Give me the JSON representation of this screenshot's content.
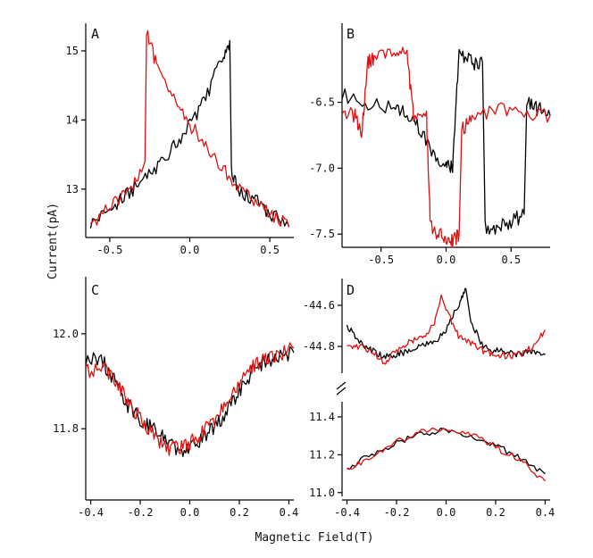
{
  "figure": {
    "xlabel": "Magnetic Field(T)",
    "ylabel": "Current(pA)"
  },
  "colors": {
    "up_sweep": "#000000",
    "down_sweep": "#e01010"
  },
  "chart_data": [
    {
      "panel": "A",
      "type": "line",
      "xlim": [
        -0.65,
        0.65
      ],
      "ylim": [
        12.3,
        15.4
      ],
      "xticks": [
        -0.5,
        0.0,
        0.5
      ],
      "xticklabels": [
        "-0.5",
        "0.0",
        "0.5"
      ],
      "yticks": [
        13,
        14,
        15
      ],
      "yticklabels": [
        "13",
        "14",
        "15"
      ],
      "series": [
        {
          "name": "black",
          "color": "#000000",
          "x": [
            -0.62,
            -0.5,
            -0.4,
            -0.3,
            -0.2,
            -0.1,
            0.0,
            0.1,
            0.2,
            0.25,
            0.26,
            0.3,
            0.4,
            0.5,
            0.62
          ],
          "y": [
            12.5,
            12.7,
            12.9,
            13.1,
            13.35,
            13.6,
            13.95,
            14.3,
            14.9,
            15.15,
            13.3,
            12.95,
            12.85,
            12.65,
            12.45
          ]
        },
        {
          "name": "red",
          "color": "#e01010",
          "x": [
            -0.62,
            -0.5,
            -0.4,
            -0.3,
            -0.28,
            -0.27,
            -0.2,
            -0.1,
            0.0,
            0.1,
            0.2,
            0.3,
            0.4,
            0.5,
            0.62
          ],
          "y": [
            12.5,
            12.75,
            12.95,
            13.25,
            13.4,
            15.3,
            14.7,
            14.3,
            13.95,
            13.6,
            13.3,
            13.05,
            12.85,
            12.65,
            12.45
          ]
        }
      ]
    },
    {
      "panel": "B",
      "type": "line",
      "xlim": [
        -0.8,
        0.8
      ],
      "ylim": [
        -7.6,
        -5.9
      ],
      "xticks": [
        -0.5,
        0.0,
        0.5
      ],
      "xticklabels": [
        "-0.5",
        "0.0",
        "0.5"
      ],
      "yticks": [
        -6.5,
        -7.0,
        -7.5
      ],
      "yticklabels": [
        "-6.5",
        "-7.0",
        "-7.5"
      ],
      "series": [
        {
          "name": "black",
          "color": "#000000",
          "x": [
            -0.8,
            -0.6,
            -0.4,
            -0.3,
            -0.2,
            -0.1,
            0.0,
            0.05,
            0.1,
            0.12,
            0.2,
            0.28,
            0.3,
            0.4,
            0.5,
            0.6,
            0.62,
            0.7,
            0.8
          ],
          "y": [
            -6.45,
            -6.5,
            -6.55,
            -6.6,
            -6.7,
            -6.9,
            -6.95,
            -7.0,
            -6.1,
            -6.15,
            -6.2,
            -6.2,
            -7.45,
            -7.45,
            -7.4,
            -7.35,
            -6.5,
            -6.55,
            -6.6
          ]
        },
        {
          "name": "red",
          "color": "#e01010",
          "x": [
            -0.8,
            -0.7,
            -0.65,
            -0.6,
            -0.55,
            -0.4,
            -0.3,
            -0.25,
            -0.15,
            -0.12,
            -0.05,
            0.0,
            0.05,
            0.1,
            0.12,
            0.2,
            0.4,
            0.6,
            0.8
          ],
          "y": [
            -6.55,
            -6.6,
            -6.75,
            -6.2,
            -6.15,
            -6.1,
            -6.15,
            -6.6,
            -6.6,
            -7.45,
            -7.5,
            -7.55,
            -7.55,
            -7.5,
            -6.7,
            -6.65,
            -6.55,
            -6.6,
            -6.6
          ]
        }
      ]
    },
    {
      "panel": "C",
      "type": "line",
      "xlim": [
        -0.42,
        0.42
      ],
      "ylim": [
        11.65,
        12.12
      ],
      "xticks": [
        -0.4,
        -0.2,
        0.0,
        0.2,
        0.4
      ],
      "xticklabels": [
        "-0.4",
        "-0.2",
        "0.0",
        "0.2",
        "0.4"
      ],
      "yticks": [
        11.8,
        12.0
      ],
      "yticklabels": [
        "11.8",
        "12.0"
      ],
      "series": [
        {
          "name": "black",
          "color": "#000000",
          "x": [
            -0.42,
            -0.35,
            -0.3,
            -0.25,
            -0.2,
            -0.15,
            -0.1,
            -0.05,
            0.0,
            0.05,
            0.1,
            0.15,
            0.2,
            0.25,
            0.3,
            0.35,
            0.42
          ],
          "y": [
            11.95,
            11.94,
            11.9,
            11.85,
            11.82,
            11.8,
            11.78,
            11.75,
            11.76,
            11.78,
            11.8,
            11.84,
            11.88,
            11.92,
            11.94,
            11.95,
            11.96
          ]
        },
        {
          "name": "red",
          "color": "#e01010",
          "x": [
            -0.42,
            -0.35,
            -0.3,
            -0.25,
            -0.2,
            -0.15,
            -0.1,
            -0.05,
            0.0,
            0.05,
            0.1,
            0.15,
            0.2,
            0.25,
            0.3,
            0.35,
            0.42
          ],
          "y": [
            11.92,
            11.93,
            11.9,
            11.86,
            11.82,
            11.79,
            11.76,
            11.76,
            11.77,
            11.79,
            11.82,
            11.86,
            11.9,
            11.93,
            11.95,
            11.95,
            11.97
          ]
        }
      ]
    },
    {
      "panel": "D",
      "type": "line",
      "broken_axis": true,
      "xlim": [
        -0.42,
        0.42
      ],
      "xticks": [
        -0.4,
        -0.2,
        0.0,
        0.2,
        0.4
      ],
      "xticklabels": [
        "-0.4",
        "-0.2",
        "0.0",
        "0.2",
        "0.4"
      ],
      "upper": {
        "ylim": [
          -44.93,
          -44.47
        ],
        "yticks": [
          -44.6,
          -44.8
        ],
        "yticklabels": [
          "-44.6",
          "-44.8"
        ],
        "series": [
          {
            "name": "black",
            "color": "#000000",
            "x": [
              -0.4,
              -0.35,
              -0.3,
              -0.25,
              -0.2,
              -0.15,
              -0.1,
              -0.05,
              0.0,
              0.05,
              0.08,
              0.1,
              0.15,
              0.2,
              0.25,
              0.3,
              0.35,
              0.4
            ],
            "y": [
              -44.7,
              -44.78,
              -44.82,
              -44.85,
              -44.84,
              -44.82,
              -44.8,
              -44.78,
              -44.72,
              -44.6,
              -44.52,
              -44.68,
              -44.8,
              -44.82,
              -44.83,
              -44.84,
              -44.82,
              -44.84
            ]
          },
          {
            "name": "red",
            "color": "#e01010",
            "x": [
              -0.4,
              -0.35,
              -0.3,
              -0.25,
              -0.2,
              -0.15,
              -0.1,
              -0.05,
              -0.02,
              0.0,
              0.05,
              0.1,
              0.15,
              0.2,
              0.25,
              0.3,
              0.35,
              0.4
            ],
            "y": [
              -44.8,
              -44.8,
              -44.82,
              -44.88,
              -44.82,
              -44.78,
              -44.76,
              -44.7,
              -44.55,
              -44.62,
              -44.75,
              -44.78,
              -44.82,
              -44.84,
              -44.85,
              -44.84,
              -44.8,
              -44.72
            ]
          }
        ]
      },
      "lower": {
        "ylim": [
          10.98,
          11.48
        ],
        "yticks": [
          11.0,
          11.2,
          11.4
        ],
        "yticklabels": [
          "11.0",
          "11.2",
          "11.4"
        ],
        "series": [
          {
            "name": "black",
            "color": "#000000",
            "x": [
              -0.4,
              -0.3,
              -0.2,
              -0.1,
              0.0,
              0.1,
              0.2,
              0.3,
              0.4
            ],
            "y": [
              11.13,
              11.2,
              11.26,
              11.31,
              11.33,
              11.3,
              11.25,
              11.18,
              11.1
            ]
          },
          {
            "name": "red",
            "color": "#e01010",
            "x": [
              -0.4,
              -0.3,
              -0.2,
              -0.1,
              0.0,
              0.1,
              0.2,
              0.3,
              0.4
            ],
            "y": [
              11.12,
              11.19,
              11.27,
              11.32,
              11.34,
              11.31,
              11.24,
              11.17,
              11.06
            ]
          }
        ]
      }
    }
  ]
}
